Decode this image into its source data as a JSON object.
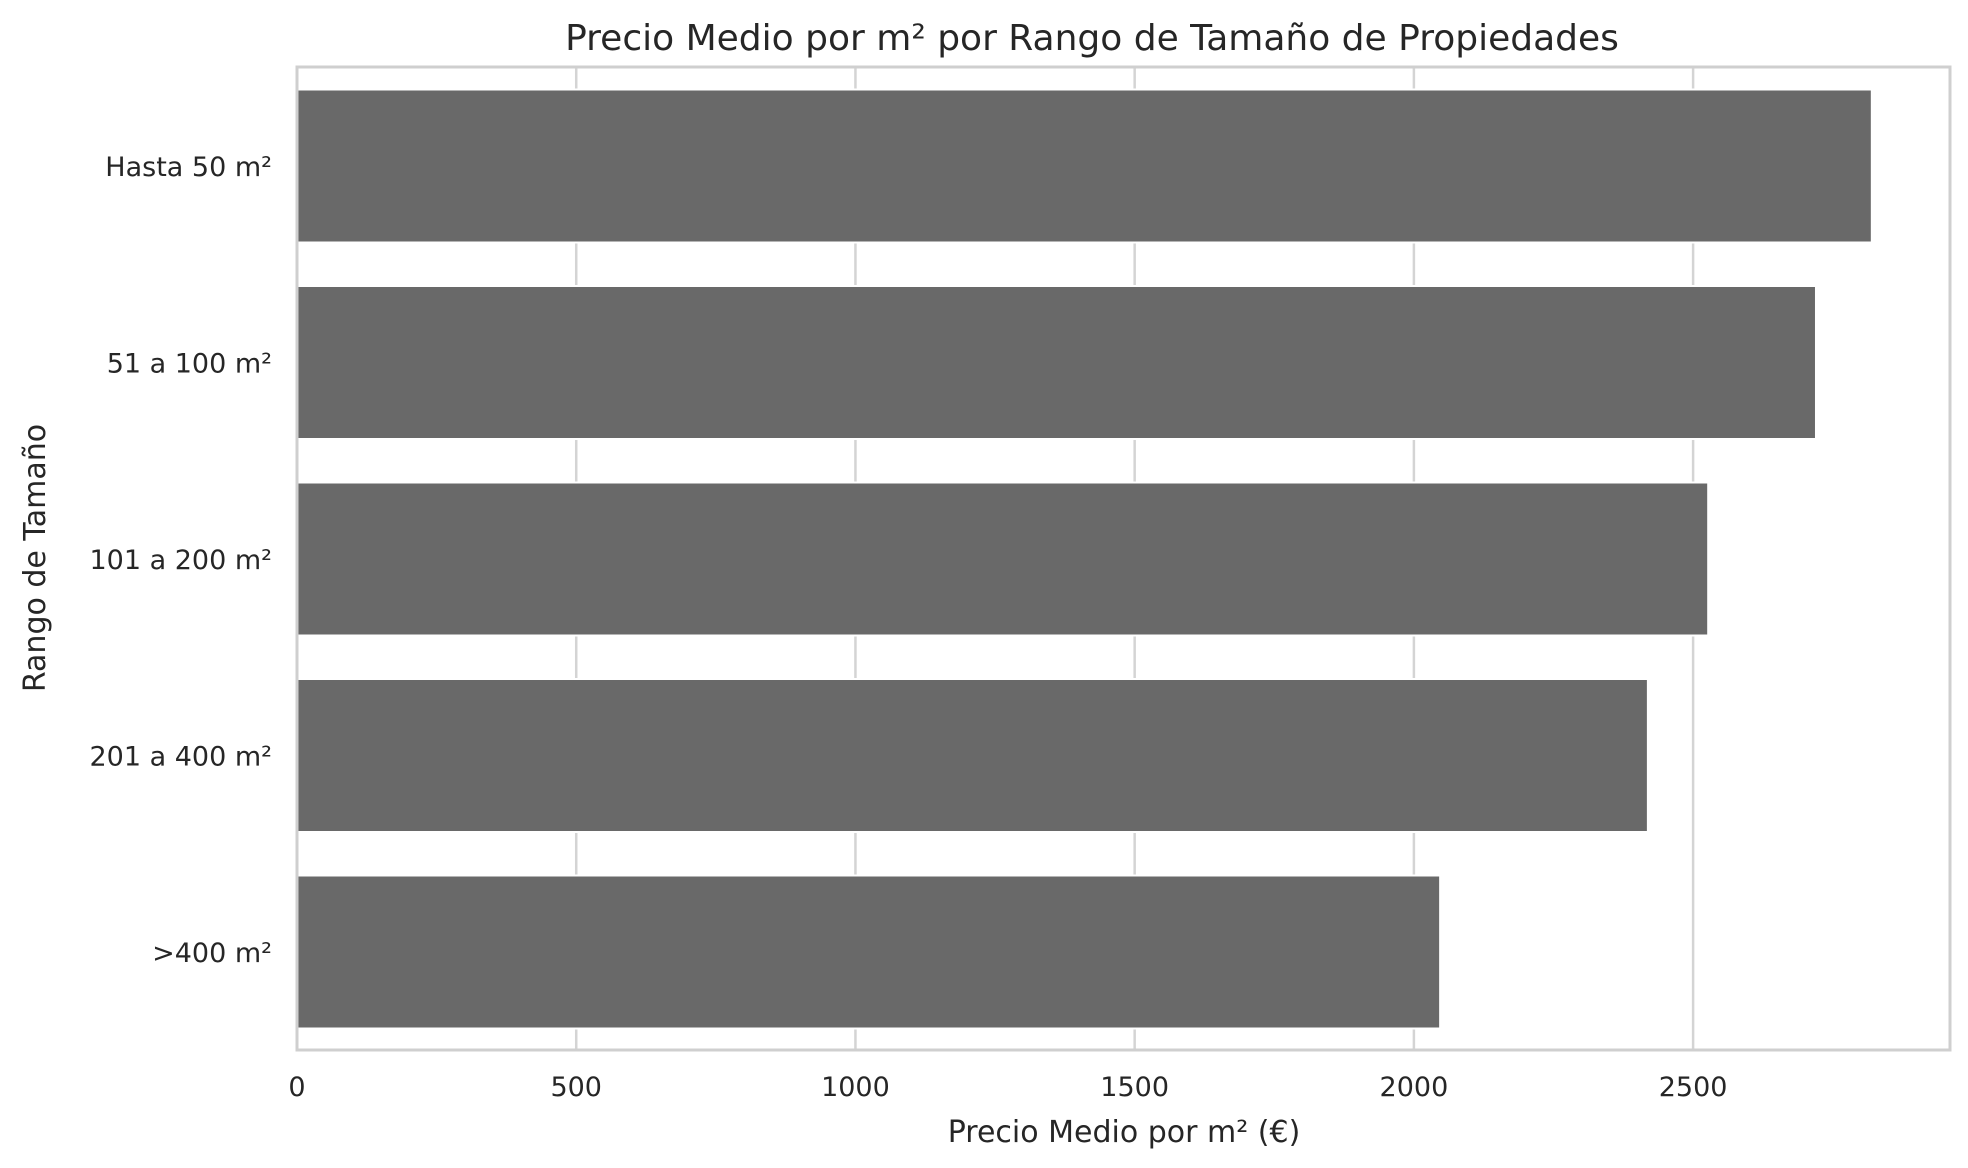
{
  "chart_data": {
    "type": "bar",
    "orientation": "horizontal",
    "title": "Precio Medio por m² por Rango de Tamaño de Propiedades",
    "xlabel": "Precio Medio por m² (€)",
    "ylabel": "Rango de Tamaño",
    "categories": [
      "Hasta 50 m²",
      "51 a 100 m²",
      "101 a 200 m²",
      "201 a 400 m²",
      ">400 m²"
    ],
    "values": [
      2820,
      2720,
      2527,
      2419,
      2047
    ],
    "xlim": [
      0,
      2960
    ],
    "x_ticks": [
      "0",
      "500",
      "1000",
      "1500",
      "2000",
      "2500"
    ],
    "grid": true,
    "bar_color": "#696969",
    "grid_color": "#d4d4d4",
    "text_color": "#262626"
  }
}
